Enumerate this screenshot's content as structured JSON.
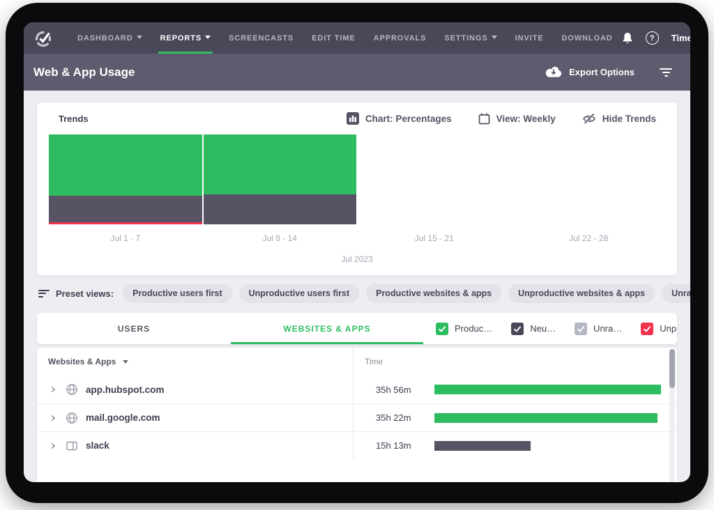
{
  "nav": {
    "items": [
      {
        "label": "DASHBOARD",
        "caret": true,
        "active": false
      },
      {
        "label": "REPORTS",
        "caret": true,
        "active": true
      },
      {
        "label": "SCREENCASTS",
        "caret": false,
        "active": false
      },
      {
        "label": "EDIT TIME",
        "caret": false,
        "active": false
      },
      {
        "label": "APPROVALS",
        "caret": false,
        "active": false
      },
      {
        "label": "SETTINGS",
        "caret": true,
        "active": false
      },
      {
        "label": "INVITE",
        "caret": false,
        "active": false
      },
      {
        "label": "DOWNLOAD",
        "caret": false,
        "active": false
      }
    ],
    "account_label": "Time…"
  },
  "subheader": {
    "title": "Web & App Usage",
    "export_label": "Export Options"
  },
  "trends": {
    "title": "Trends",
    "controls": [
      {
        "label": "Chart: Percentages",
        "icon": "bar-chart-icon"
      },
      {
        "label": "View: Weekly",
        "icon": "calendar-icon"
      },
      {
        "label": "Hide Trends",
        "icon": "eye-off-icon"
      }
    ],
    "chart_data": {
      "type": "bar",
      "stacked": true,
      "unit": "percent",
      "categories": [
        "Jul 1 - 7",
        "Jul 8 - 14",
        "Jul 15 - 21",
        "Jul 22 - 28"
      ],
      "series": [
        {
          "name": "Productive",
          "color": "#2dbd60",
          "values": [
            68,
            67,
            0,
            0
          ]
        },
        {
          "name": "Neutral",
          "color": "#575365",
          "values": [
            30,
            33,
            0,
            0
          ]
        },
        {
          "name": "Unproductive",
          "color": "#f2334d",
          "values": [
            2,
            0,
            0,
            0
          ]
        }
      ],
      "xlabel": "Jul 2023",
      "ylim": [
        0,
        100
      ],
      "grid": false,
      "legend_position": "none"
    }
  },
  "preset_views": {
    "label": "Preset views:",
    "chips": [
      "Productive users first",
      "Unproductive users first",
      "Productive websites & apps",
      "Unproductive websites & apps",
      "Unrated websites & apps"
    ]
  },
  "tabs": {
    "users_label": "USERS",
    "websites_label": "WEBSITES & APPS",
    "active": "websites"
  },
  "legend": [
    {
      "label": "Produc…",
      "color": "#2dbd60",
      "checked": true
    },
    {
      "label": "Neu…",
      "color": "#4a4759",
      "checked": true
    },
    {
      "label": "Unra…",
      "color": "#b4b8c3",
      "checked": true
    },
    {
      "label": "Unprodu…",
      "color": "#f2334d",
      "checked": true
    }
  ],
  "table": {
    "columns": [
      "Websites & Apps",
      "Time"
    ],
    "max_minutes": 2156,
    "bar_colors": {
      "productive": "#2dbd60",
      "neutral": "#575365",
      "unproductive": "#f2334d"
    },
    "rows": [
      {
        "name": "app.hubspot.com",
        "icon": "globe-icon",
        "time": "35h 56m",
        "minutes": 2156,
        "category": "productive"
      },
      {
        "name": "mail.google.com",
        "icon": "globe-icon",
        "time": "35h 22m",
        "minutes": 2122,
        "category": "productive"
      },
      {
        "name": "slack",
        "icon": "app-window-icon",
        "time": "15h 13m",
        "minutes": 913,
        "category": "neutral"
      }
    ]
  }
}
